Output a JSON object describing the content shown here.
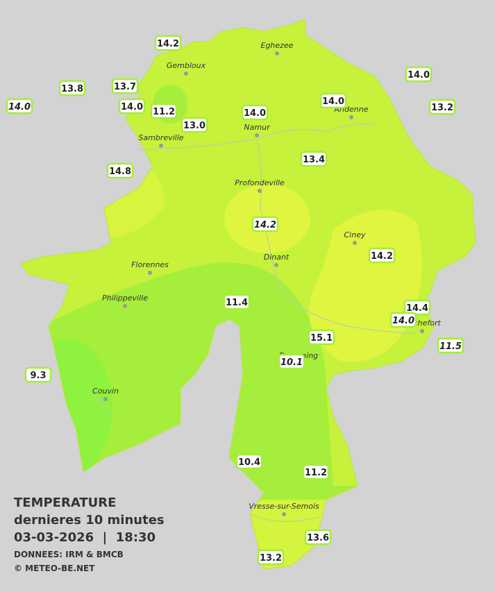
{
  "info": {
    "title": "TEMPERATURE",
    "subtitle": "dernieres 10 minutes",
    "datetime": "03-03-2026  |  18:30",
    "source": "DONNEES: IRM & BMCB",
    "copyright": "© METEO-BE.NET"
  },
  "towns": [
    "Eghezee",
    "Gembloux",
    "Andenne",
    "Sambreville",
    "Namur",
    "Profondeville",
    "Ciney",
    "Dinant",
    "Florennes",
    "Philippeville",
    "Beauraing",
    "Rochefort",
    "Couvin",
    "Vresse-sur-Semois"
  ],
  "stations": [
    {
      "value": "14.2",
      "italic": false
    },
    {
      "value": "13.8",
      "italic": false
    },
    {
      "value": "13.7",
      "italic": false
    },
    {
      "value": "14.0",
      "italic": true
    },
    {
      "value": "14.0",
      "italic": false
    },
    {
      "value": "11.2",
      "italic": false
    },
    {
      "value": "13.0",
      "italic": false
    },
    {
      "value": "14.0",
      "italic": false
    },
    {
      "value": "14.0",
      "italic": false
    },
    {
      "value": "14.0",
      "italic": false
    },
    {
      "value": "13.2",
      "italic": false
    },
    {
      "value": "14.8",
      "italic": false
    },
    {
      "value": "13.4",
      "italic": false
    },
    {
      "value": "14.2",
      "italic": true
    },
    {
      "value": "14.2",
      "italic": false
    },
    {
      "value": "11.4",
      "italic": false
    },
    {
      "value": "14.4",
      "italic": false
    },
    {
      "value": "14.0",
      "italic": true
    },
    {
      "value": "15.1",
      "italic": false
    },
    {
      "value": "11.5",
      "italic": true
    },
    {
      "value": "10.1",
      "italic": true
    },
    {
      "value": "9.3",
      "italic": false
    },
    {
      "value": "10.4",
      "italic": false
    },
    {
      "value": "11.2",
      "italic": false
    },
    {
      "value": "13.6",
      "italic": false
    },
    {
      "value": "13.2",
      "italic": false
    }
  ]
}
